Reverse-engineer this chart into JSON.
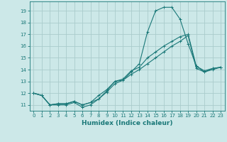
{
  "title": "",
  "xlabel": "Humidex (Indice chaleur)",
  "background_color": "#cce8e8",
  "grid_color": "#aacccc",
  "line_color": "#1a7878",
  "xlim": [
    -0.5,
    23.5
  ],
  "ylim": [
    10.5,
    19.8
  ],
  "yticks": [
    11,
    12,
    13,
    14,
    15,
    16,
    17,
    18,
    19
  ],
  "xticks": [
    0,
    1,
    2,
    3,
    4,
    5,
    6,
    7,
    8,
    9,
    10,
    11,
    12,
    13,
    14,
    15,
    16,
    17,
    18,
    19,
    20,
    21,
    22,
    23
  ],
  "line1_x": [
    0,
    1,
    2,
    3,
    4,
    5,
    6,
    7,
    8,
    9,
    10,
    11,
    12,
    13,
    14,
    15,
    16,
    17,
    18,
    19,
    20,
    21,
    22,
    23
  ],
  "line1_y": [
    12.0,
    11.8,
    11.0,
    11.0,
    11.0,
    11.2,
    10.8,
    11.0,
    11.5,
    12.2,
    13.0,
    13.1,
    13.8,
    14.5,
    17.2,
    19.0,
    19.3,
    19.3,
    18.3,
    16.2,
    14.3,
    13.8,
    14.1,
    14.2
  ],
  "line2_x": [
    0,
    1,
    2,
    3,
    4,
    5,
    6,
    7,
    8,
    9,
    10,
    11,
    12,
    13,
    14,
    15,
    16,
    17,
    18,
    19,
    20,
    21,
    22,
    23
  ],
  "line2_y": [
    12.0,
    11.8,
    11.0,
    11.1,
    11.1,
    11.3,
    11.0,
    11.2,
    11.8,
    12.3,
    13.0,
    13.2,
    13.9,
    14.2,
    15.0,
    15.5,
    16.0,
    16.4,
    16.8,
    17.0,
    14.3,
    13.9,
    14.1,
    14.2
  ],
  "line3_x": [
    0,
    1,
    2,
    3,
    4,
    5,
    6,
    7,
    8,
    9,
    10,
    11,
    12,
    13,
    14,
    15,
    16,
    17,
    18,
    19,
    20,
    21,
    22,
    23
  ],
  "line3_y": [
    12.0,
    11.8,
    11.0,
    11.1,
    11.1,
    11.3,
    11.0,
    11.2,
    11.5,
    12.1,
    12.8,
    13.1,
    13.6,
    14.0,
    14.5,
    15.0,
    15.5,
    16.0,
    16.4,
    16.9,
    14.1,
    13.8,
    14.0,
    14.2
  ],
  "xlabel_fontsize": 6.5,
  "tick_fontsize": 5,
  "linewidth": 0.8,
  "markersize": 3
}
